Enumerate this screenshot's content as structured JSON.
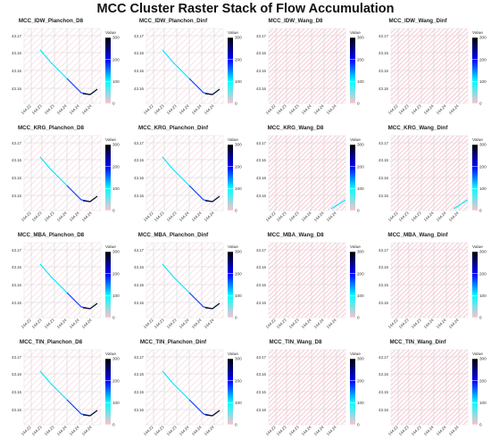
{
  "title": "MCC Cluster Raster Stack of Flow Accumulation",
  "palette": {
    "background_grid": "#f6c9d4",
    "colorbar_stops": [
      "#ffc0cb",
      "#00ffff",
      "#0000ff",
      "#000000"
    ],
    "stream_colors": [
      "#00e5ff",
      "#1e3cff",
      "#101030"
    ]
  },
  "chart_data": {
    "type": "heatmap",
    "legend_title": "Value",
    "colorbar_ticks": [
      0,
      100,
      200,
      300
    ],
    "value_range": [
      0,
      300
    ],
    "y_ticks": [
      "43.17",
      "43.16",
      "43.16",
      "43.16"
    ],
    "x_ticks": [
      "144.22",
      "144.23",
      "144.23",
      "144.24",
      "144.24",
      "144.24"
    ],
    "legend_placement": "right of each panel",
    "panels": [
      {
        "title": "MCC_IDW_Planchon_D8",
        "method": "Planchon",
        "has_stream": true
      },
      {
        "title": "MCC_IDW_Planchon_Dinf",
        "method": "Planchon",
        "has_stream": true
      },
      {
        "title": "MCC_IDW_Wang_D8",
        "method": "Wang",
        "has_stream": false
      },
      {
        "title": "MCC_IDW_Wang_Dinf",
        "method": "Wang",
        "has_stream": false
      },
      {
        "title": "MCC_KRG_Planchon_D8",
        "method": "Planchon",
        "has_stream": true
      },
      {
        "title": "MCC_KRG_Planchon_Dinf",
        "method": "Planchon",
        "has_stream": true
      },
      {
        "title": "MCC_KRG_Wang_D8",
        "method": "Wang",
        "has_stream": true
      },
      {
        "title": "MCC_KRG_Wang_Dinf",
        "method": "Wang",
        "has_stream": true
      },
      {
        "title": "MCC_MBA_Planchon_D8",
        "method": "Planchon",
        "has_stream": true
      },
      {
        "title": "MCC_MBA_Planchon_Dinf",
        "method": "Planchon",
        "has_stream": true
      },
      {
        "title": "MCC_MBA_Wang_D8",
        "method": "Wang",
        "has_stream": false
      },
      {
        "title": "MCC_MBA_Wang_Dinf",
        "method": "Wang",
        "has_stream": false
      },
      {
        "title": "MCC_TIN_Planchon_D8",
        "method": "Planchon",
        "has_stream": true
      },
      {
        "title": "MCC_TIN_Planchon_Dinf",
        "method": "Planchon",
        "has_stream": true
      },
      {
        "title": "MCC_TIN_Wang_D8",
        "method": "Wang",
        "has_stream": false
      },
      {
        "title": "MCC_TIN_Wang_Dinf",
        "method": "Wang",
        "has_stream": false
      }
    ]
  }
}
